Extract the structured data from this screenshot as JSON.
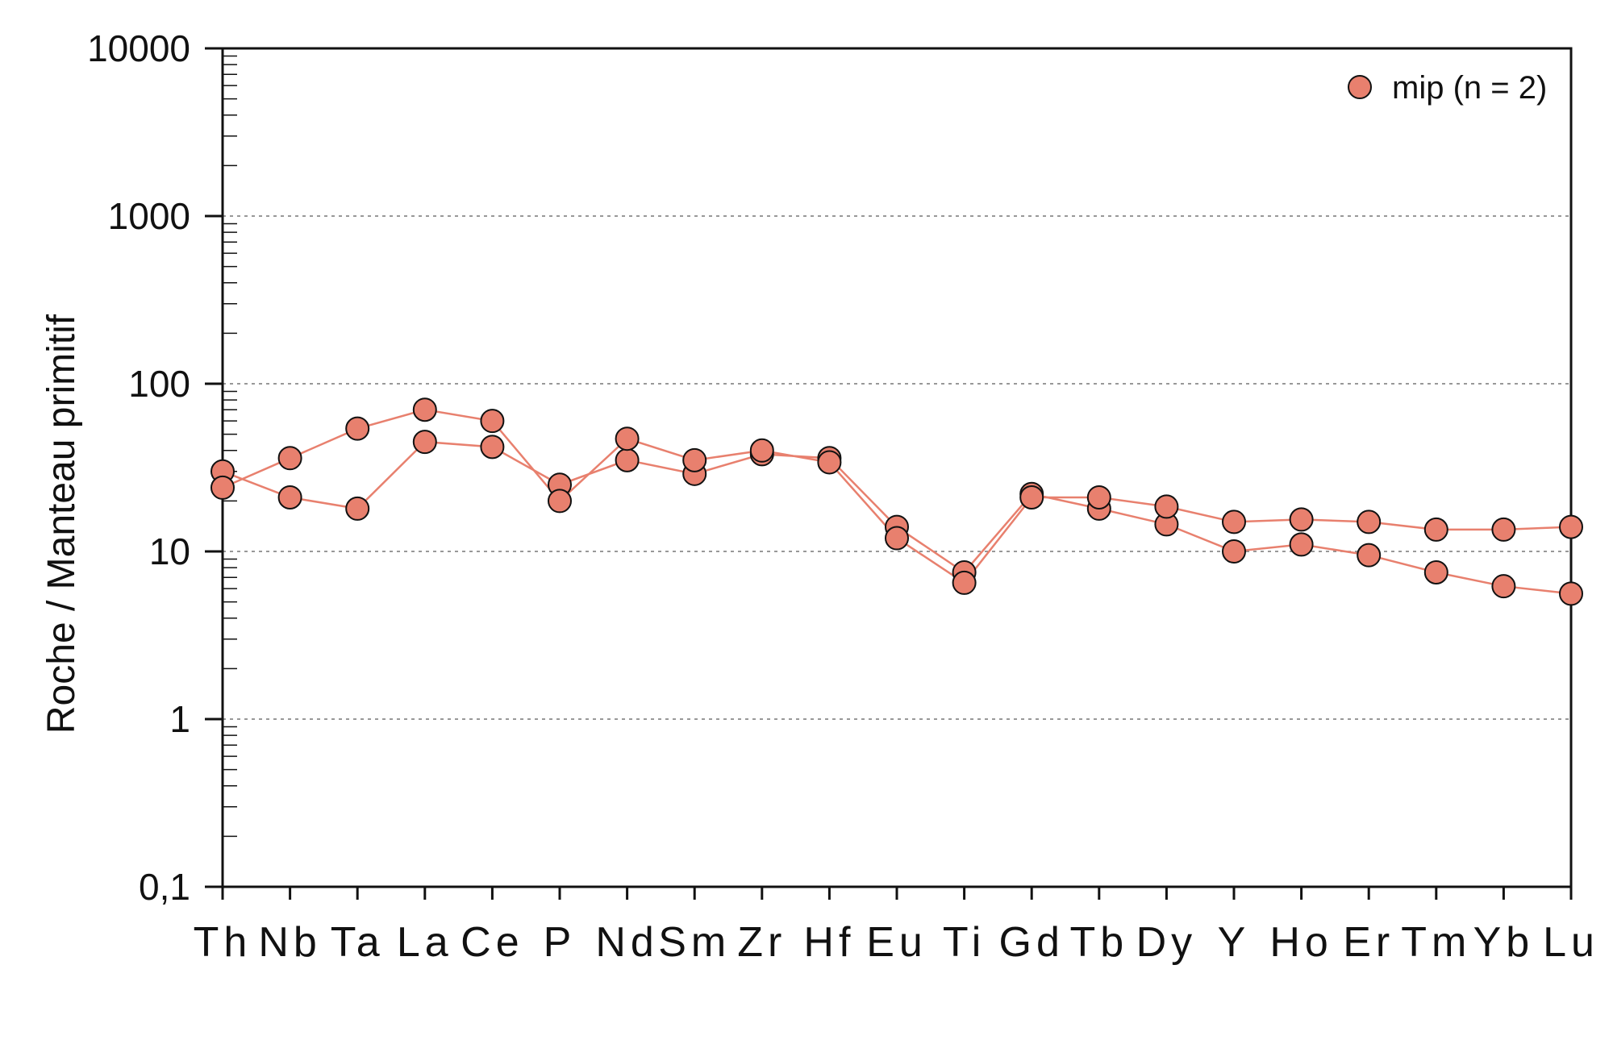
{
  "chart_data": {
    "type": "line",
    "y_scale": "log",
    "ylabel": "Roche / Manteau primitif",
    "xlabel": "",
    "ylim": [
      0.1,
      10000
    ],
    "yticks": [
      {
        "value": 10000,
        "label": "10000"
      },
      {
        "value": 1000,
        "label": "1000"
      },
      {
        "value": 100,
        "label": "100"
      },
      {
        "value": 10,
        "label": "10"
      },
      {
        "value": 1,
        "label": "1"
      },
      {
        "value": 0.1,
        "label": "0,1"
      }
    ],
    "grid": "dashed horizontal at decades",
    "legend_position": "top-right",
    "legend_label": "mip (n = 2)",
    "marker_color": "#E8806E",
    "line_color": "#E8806E",
    "categories": [
      "Th",
      "Nb",
      "Ta",
      "La",
      "Ce",
      "P",
      "Nd",
      "Sm",
      "Zr",
      "Hf",
      "Eu",
      "Ti",
      "Gd",
      "Tb",
      "Dy",
      "Y",
      "Ho",
      "Er",
      "Tm",
      "Yb",
      "Lu"
    ],
    "series": [
      {
        "values": [
          30,
          21,
          18,
          45,
          42,
          25,
          35,
          29,
          38,
          36,
          14,
          7.5,
          22,
          18,
          14.5,
          10,
          11,
          9.5,
          7.5,
          6.2,
          5.6
        ]
      },
      {
        "values": [
          24,
          36,
          54,
          70,
          60,
          20,
          47,
          35,
          40,
          34,
          12,
          6.5,
          21,
          21,
          18.5,
          15,
          15.5,
          15,
          13.5,
          13.5,
          14
        ]
      }
    ]
  }
}
